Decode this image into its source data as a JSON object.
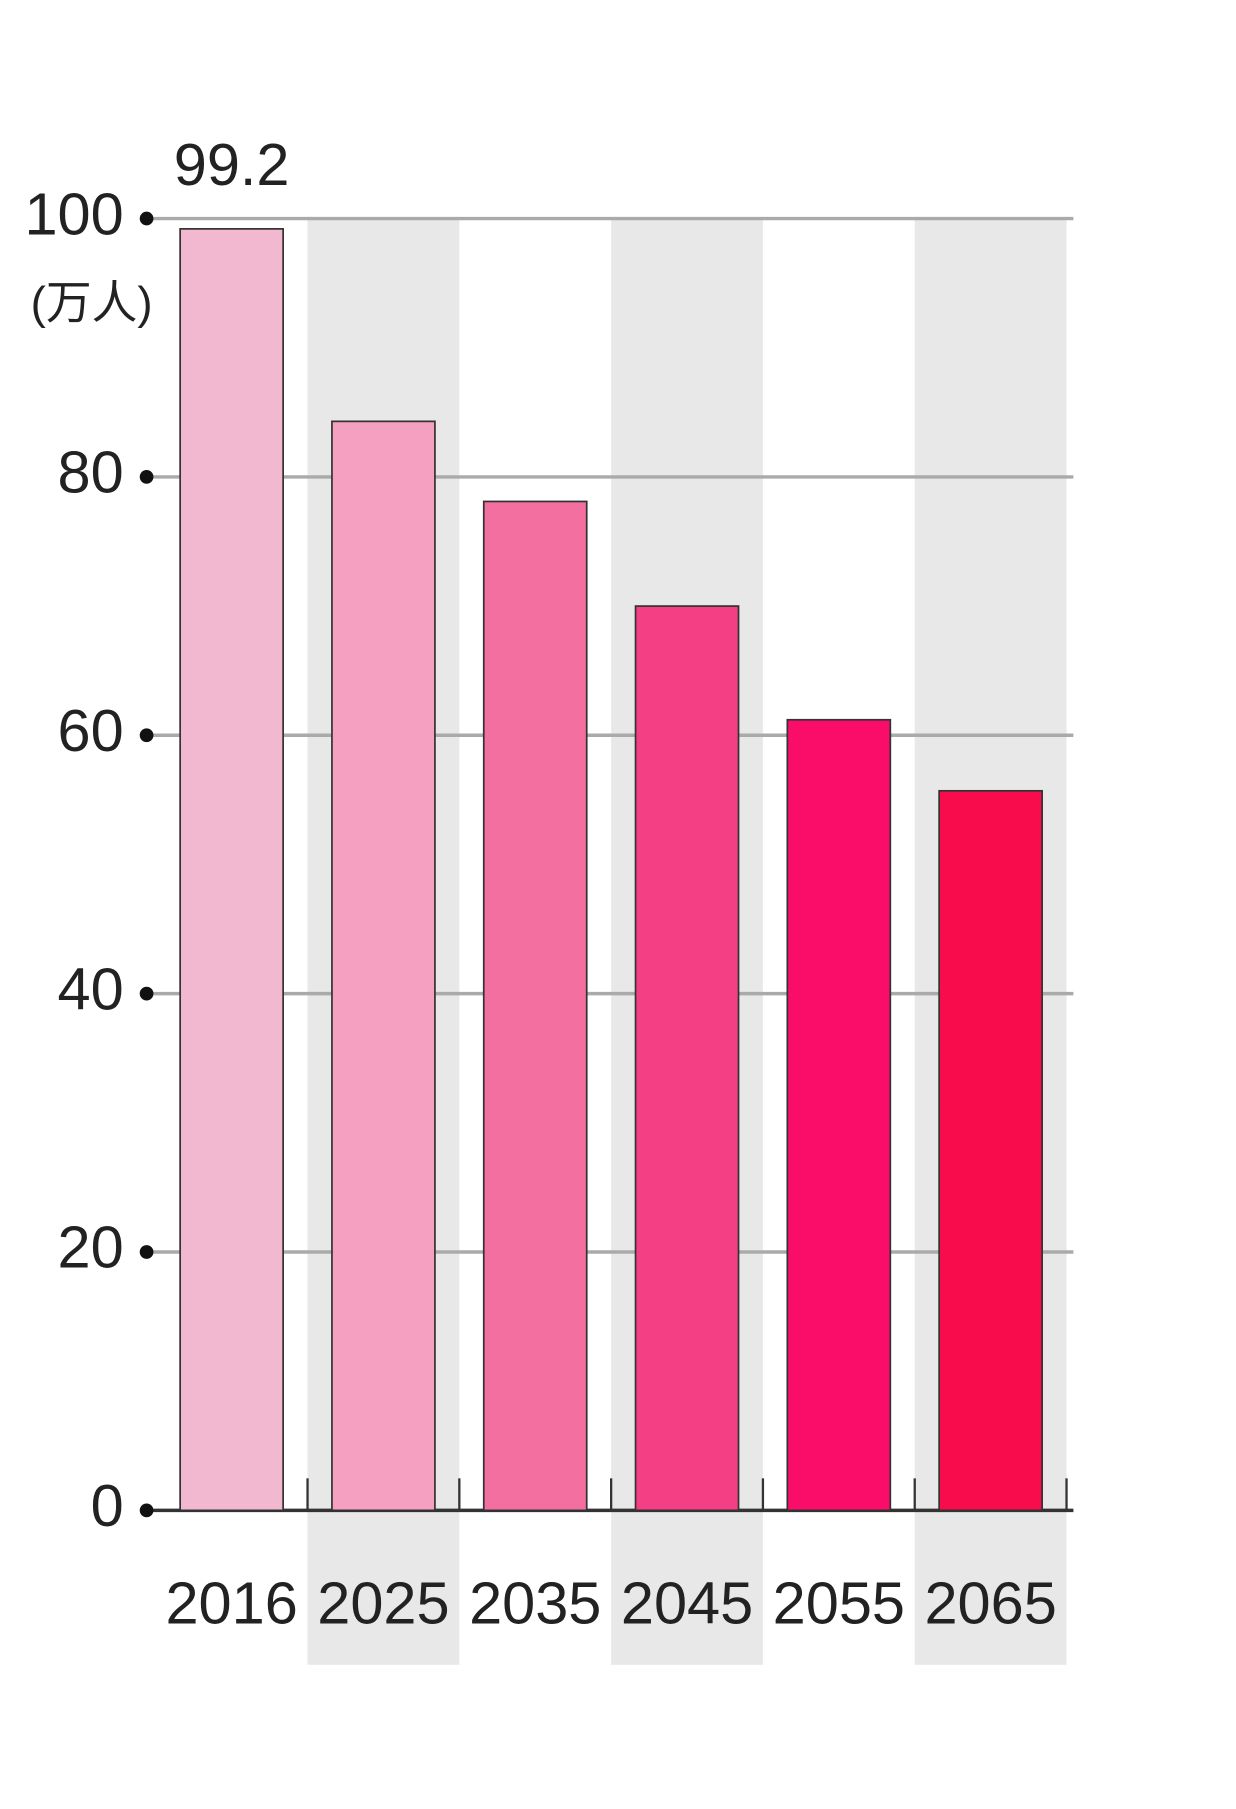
{
  "chart_data": {
    "type": "bar",
    "y_label": "(万人)",
    "categories": [
      "2016",
      "2025",
      "2035",
      "2045",
      "2055",
      "2065"
    ],
    "values": [
      99.2,
      84.3,
      78.1,
      70.0,
      61.2,
      55.7
    ],
    "value_labels": [
      "99.2",
      null,
      null,
      null,
      null,
      null
    ],
    "colors": [
      "#f2b8cf",
      "#f5a0c0",
      "#f26fa0",
      "#f43f84",
      "#f90d69",
      "#f80c4c"
    ],
    "ylim": [
      0,
      100
    ],
    "yticks": [
      0,
      20,
      40,
      60,
      80,
      100
    ],
    "grid": true
  }
}
